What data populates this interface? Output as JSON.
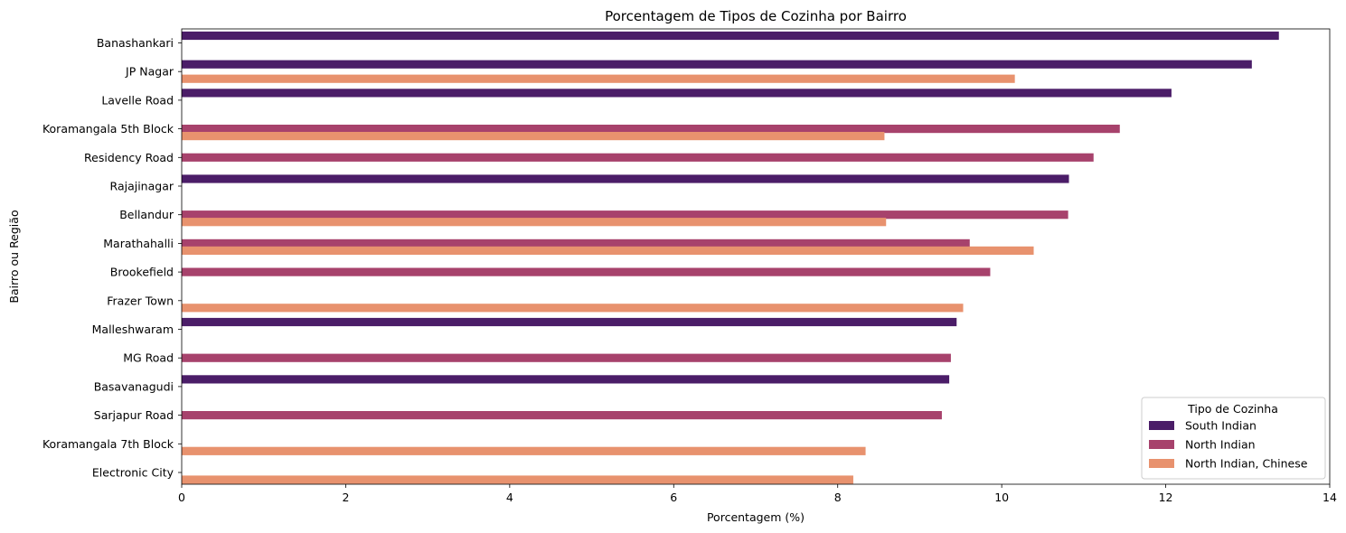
{
  "chart_data": {
    "type": "bar",
    "orientation": "horizontal",
    "title": "Porcentagem de Tipos de Cozinha por Bairro",
    "xlabel": "Porcentagem (%)",
    "ylabel": "Bairro ou Região",
    "xlim": [
      0,
      14
    ],
    "xticks": [
      0,
      2,
      4,
      6,
      8,
      10,
      12,
      14
    ],
    "grid": false,
    "legend_title": "Tipo de Cozinha",
    "legend_position": "lower-right",
    "categories": [
      "Banashankari",
      "JP Nagar",
      "Lavelle Road",
      "Koramangala 5th Block",
      "Residency Road",
      "Rajajinagar",
      "Bellandur",
      "Marathahalli",
      "Brookefield",
      "Frazer Town",
      "Malleshwaram",
      "MG Road",
      "Basavanagudi",
      "Sarjapur Road",
      "Koramangala 7th Block",
      "Electronic City"
    ],
    "series": [
      {
        "name": "South Indian",
        "color": "#4b1d68",
        "values": [
          13.38,
          13.05,
          12.07,
          null,
          null,
          10.82,
          null,
          null,
          null,
          null,
          9.45,
          null,
          9.36,
          null,
          null,
          null
        ]
      },
      {
        "name": "North Indian",
        "color": "#a7426c",
        "values": [
          null,
          null,
          null,
          11.44,
          11.12,
          null,
          10.81,
          9.61,
          9.86,
          null,
          null,
          9.38,
          null,
          9.27,
          null,
          null
        ]
      },
      {
        "name": "North Indian, Chinese",
        "color": "#e8926e",
        "values": [
          null,
          10.16,
          null,
          8.57,
          null,
          null,
          8.59,
          10.39,
          null,
          9.53,
          null,
          null,
          null,
          null,
          8.34,
          8.19
        ]
      }
    ]
  }
}
